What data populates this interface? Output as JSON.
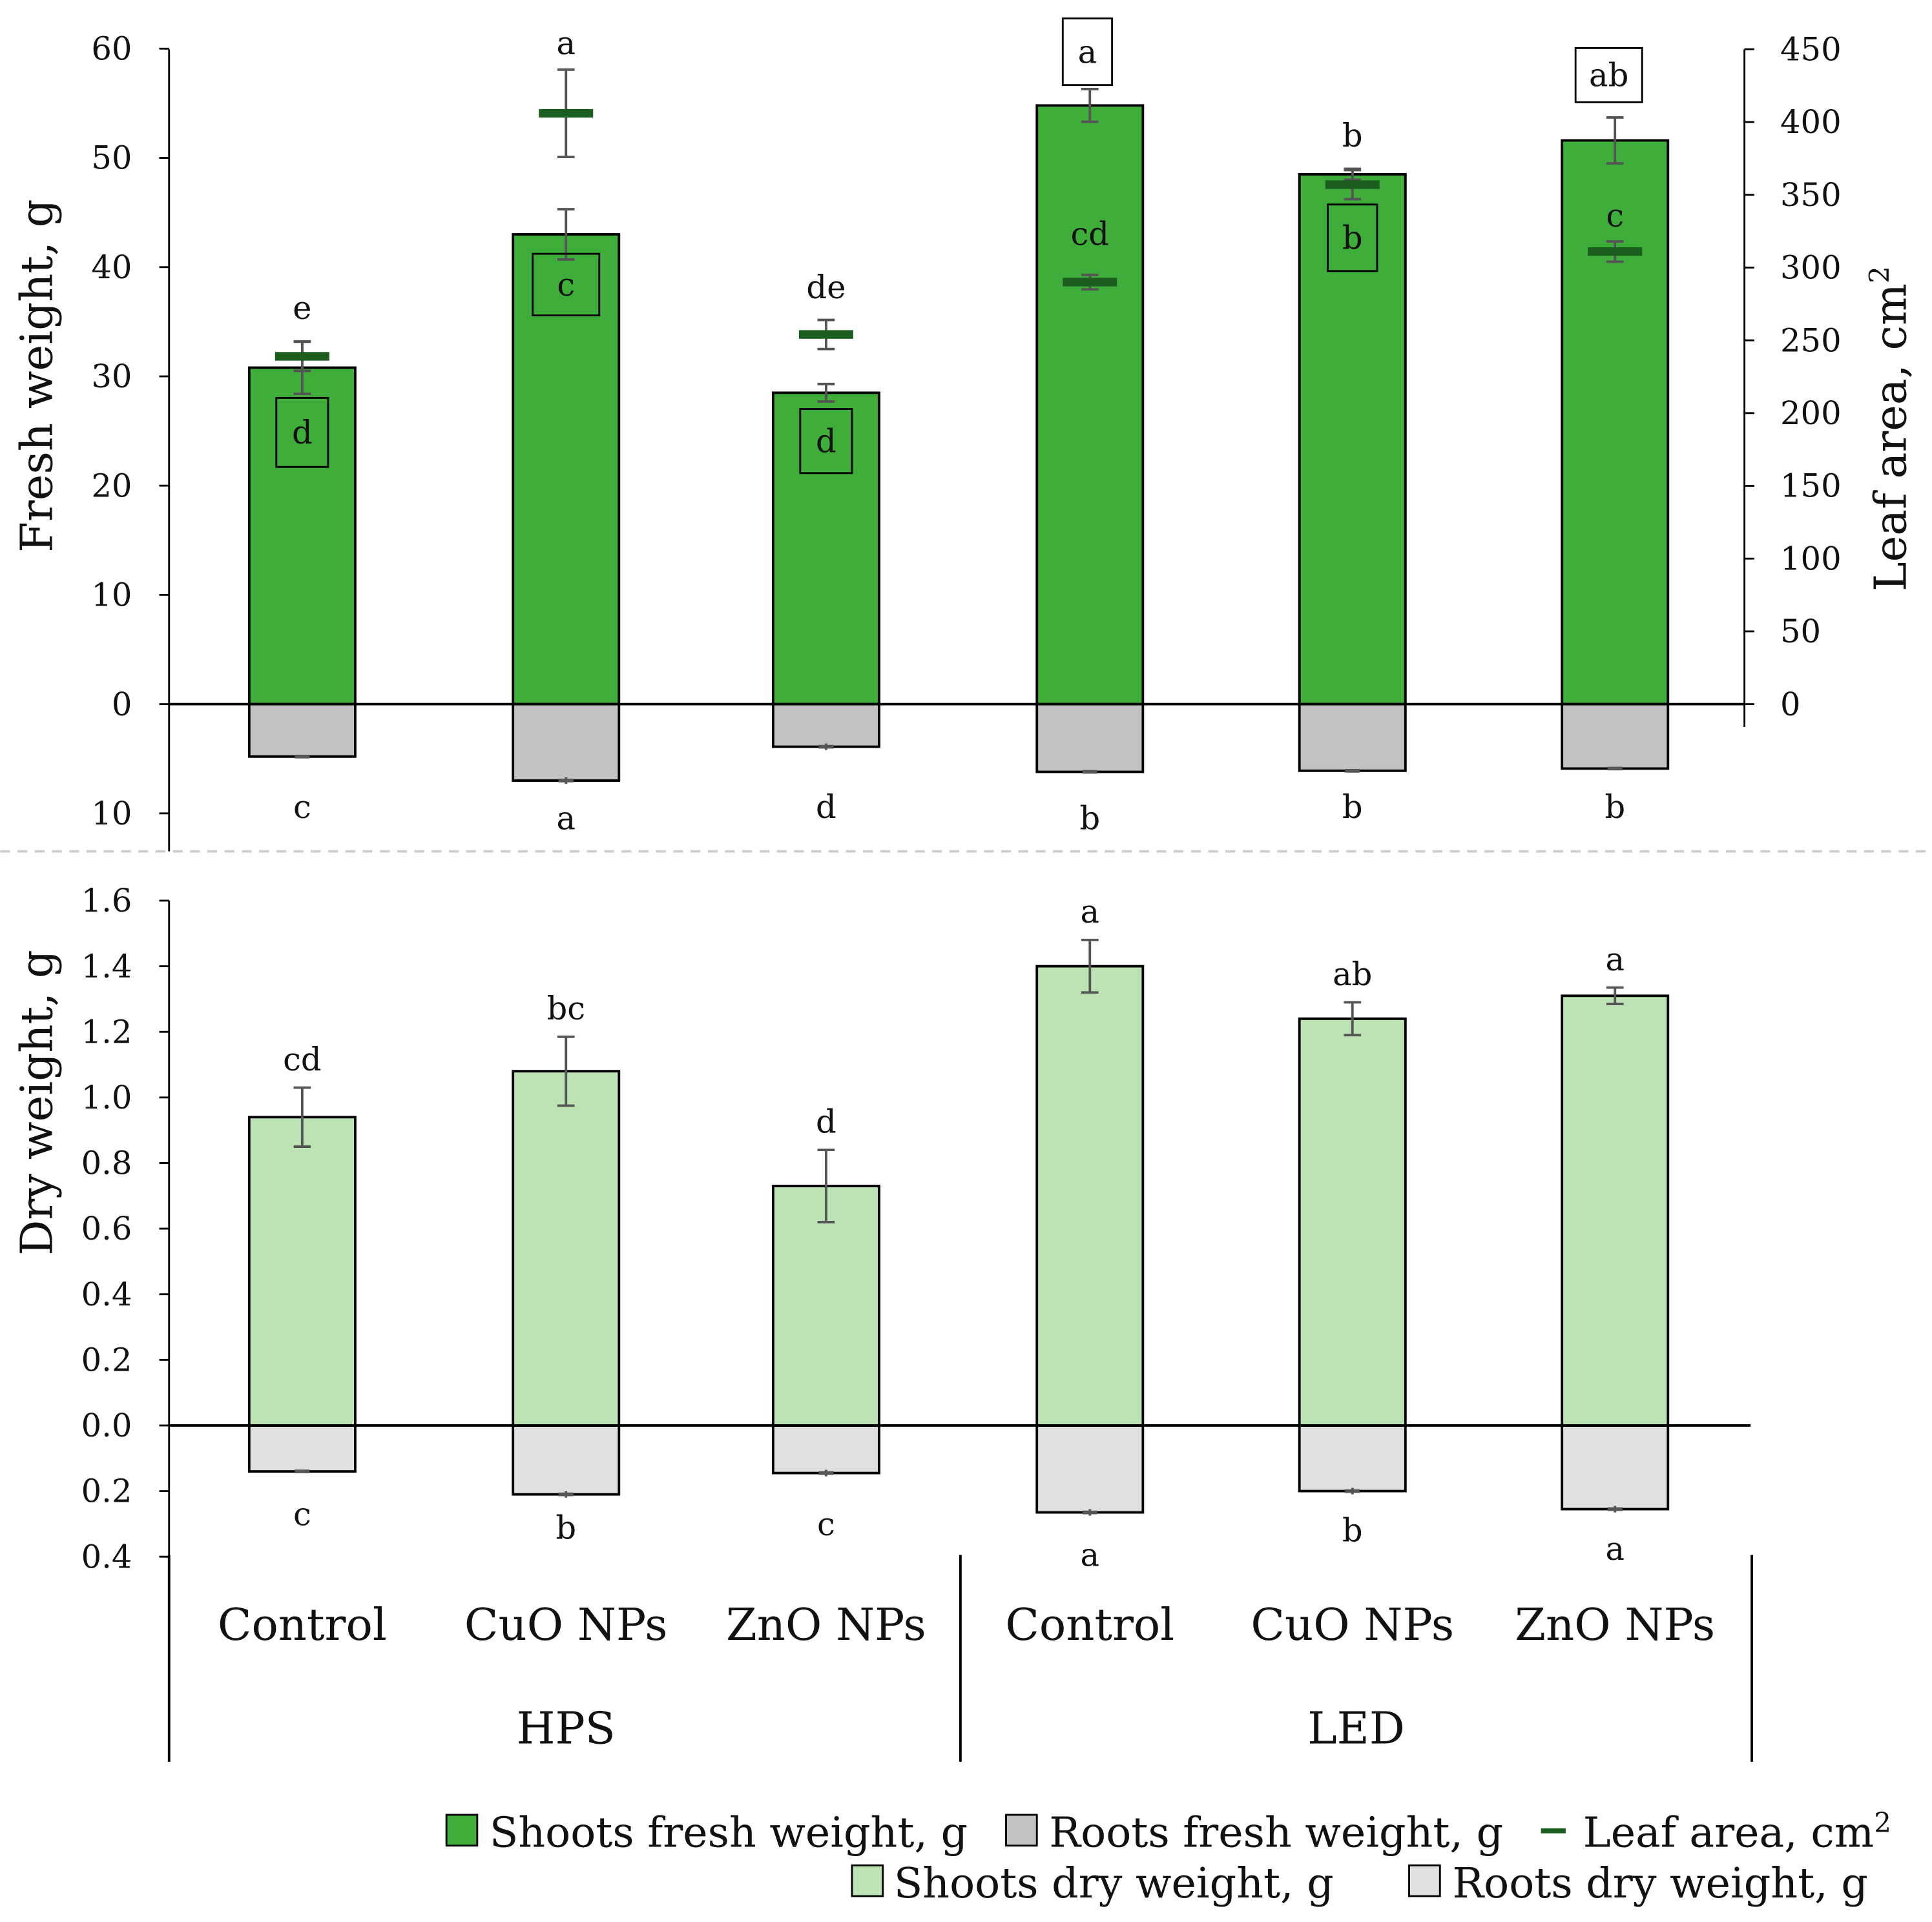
{
  "colors": {
    "shoot_fresh": "#3fad3a",
    "root_fresh": "#c2c2c2",
    "leaf_area": "#1b5e20",
    "shoot_dry": "#bde3b5",
    "root_dry": "#e0e0e0",
    "error_bar": "#555555",
    "axis": "#000000"
  },
  "chart_data": [
    {
      "id": "fresh",
      "type": "bar",
      "ylabel": "Fresh weight, g",
      "y2label": "Leaf area, cm",
      "y2label_sup": "2",
      "yticks": [
        {
          "value": 60,
          "label": "60"
        },
        {
          "value": 50,
          "label": "50"
        },
        {
          "value": 40,
          "label": "40"
        },
        {
          "value": 30,
          "label": "30"
        },
        {
          "value": 20,
          "label": "20"
        },
        {
          "value": 10,
          "label": "10"
        },
        {
          "value": 0,
          "label": "0"
        },
        {
          "value": -10,
          "label": "10"
        }
      ],
      "y2ticks": [
        {
          "value": 450,
          "label": "450"
        },
        {
          "value": 400,
          "label": "400"
        },
        {
          "value": 350,
          "label": "350"
        },
        {
          "value": 300,
          "label": "300"
        },
        {
          "value": 250,
          "label": "250"
        },
        {
          "value": 200,
          "label": "200"
        },
        {
          "value": 150,
          "label": "150"
        },
        {
          "value": 100,
          "label": "100"
        },
        {
          "value": 50,
          "label": "50"
        },
        {
          "value": 0,
          "label": "0"
        }
      ],
      "ylim": [
        -13.5,
        60
      ],
      "y2lim": [
        0,
        450
      ],
      "shoots": {
        "name": "Shoots fresh weight, g",
        "values": [
          30.8,
          43.0,
          28.5,
          54.8,
          48.5,
          51.6
        ],
        "errors": [
          2.4,
          2.3,
          0.8,
          1.5,
          0.5,
          2.1
        ],
        "letters": [
          "d",
          "c",
          "d",
          "a",
          "b",
          "ab"
        ],
        "boxed": [
          true,
          true,
          true,
          true,
          true,
          true
        ]
      },
      "roots": {
        "name": "Roots fresh weight, g",
        "values": [
          -4.8,
          -7.0,
          -3.9,
          -6.2,
          -6.1,
          -5.9
        ],
        "errors": [
          0.15,
          0.3,
          0.3,
          0.1,
          0.1,
          0.1
        ],
        "letters": [
          "c",
          "a",
          "d",
          "b",
          "b",
          "b"
        ]
      },
      "leaf_area": {
        "name": "Leaf area, cm",
        "name_sup": "2",
        "values": [
          239,
          406,
          254,
          290,
          357,
          311
        ],
        "errors": [
          10,
          30,
          10,
          5,
          10,
          7
        ],
        "letters": [
          "e",
          "a",
          "de",
          "cd",
          "b",
          "c"
        ]
      }
    },
    {
      "id": "dry",
      "type": "bar",
      "ylabel": "Dry weight, g",
      "yticks": [
        {
          "value": 1.6,
          "label": "1.6"
        },
        {
          "value": 1.4,
          "label": "1.4"
        },
        {
          "value": 1.2,
          "label": "1.2"
        },
        {
          "value": 1.0,
          "label": "1.0"
        },
        {
          "value": 0.8,
          "label": "0.8"
        },
        {
          "value": 0.6,
          "label": "0.6"
        },
        {
          "value": 0.4,
          "label": "0.4"
        },
        {
          "value": 0.2,
          "label": "0.2"
        },
        {
          "value": 0.0,
          "label": "0.0"
        },
        {
          "value": -0.2,
          "label": "0.2"
        },
        {
          "value": -0.4,
          "label": "0.4"
        }
      ],
      "ylim": [
        -0.4,
        1.6
      ],
      "shoots": {
        "name": "Shoots dry weight, g",
        "values": [
          0.94,
          1.08,
          0.73,
          1.4,
          1.24,
          1.31
        ],
        "errors": [
          0.09,
          0.105,
          0.11,
          0.08,
          0.05,
          0.025
        ],
        "letters": [
          "cd",
          "bc",
          "d",
          "a",
          "ab",
          "a"
        ]
      },
      "roots": {
        "name": "Roots dry weight, g",
        "values": [
          -0.14,
          -0.21,
          -0.145,
          -0.265,
          -0.2,
          -0.255
        ],
        "errors": [
          0.0,
          0.01,
          0.01,
          0.01,
          0.01,
          0.01
        ],
        "letters": [
          "c",
          "b",
          "c",
          "a",
          "b",
          "a"
        ]
      }
    }
  ],
  "categories": [
    "Control",
    "CuO NPs",
    "ZnO NPs",
    "Control",
    "CuO NPs",
    "ZnO NPs"
  ],
  "groups": [
    {
      "label": "HPS",
      "span": [
        0,
        2
      ]
    },
    {
      "label": "LED",
      "span": [
        3,
        5
      ]
    }
  ],
  "legend": {
    "row1": [
      {
        "label": "Shoots fresh weight, g",
        "kind": "box",
        "color_key": "shoot_fresh"
      },
      {
        "label": "Roots fresh weight, g",
        "kind": "box",
        "color_key": "root_fresh"
      },
      {
        "label": "Leaf area, cm",
        "sup": "2",
        "kind": "dash",
        "color_key": "leaf_area"
      }
    ],
    "row2": [
      {
        "label": "Shoots dry weight, g",
        "kind": "box",
        "color_key": "shoot_dry"
      },
      {
        "label": "Roots dry weight, g",
        "kind": "box",
        "color_key": "root_dry"
      }
    ]
  }
}
